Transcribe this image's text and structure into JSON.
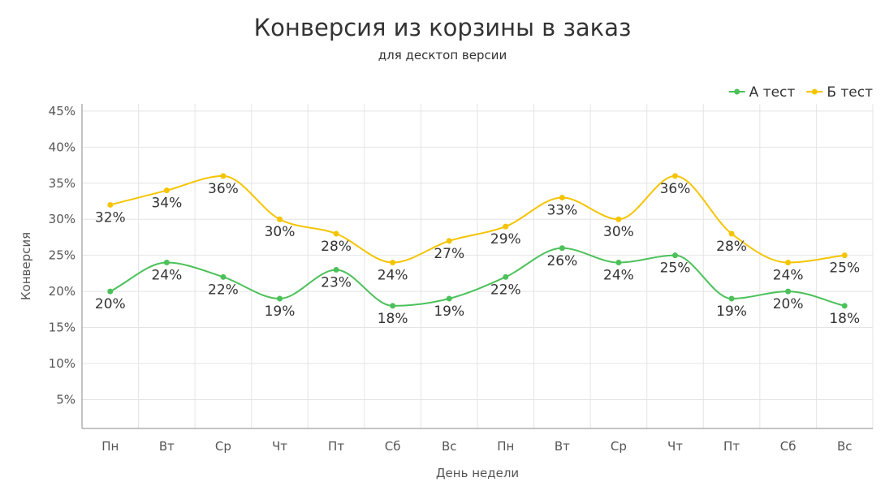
{
  "chart_data": {
    "type": "line",
    "title": "Конверсия из корзины в заказ",
    "subtitle": "для десктоп версии",
    "xlabel": "День недели",
    "ylabel": "Конверсия",
    "categories": [
      "Пн",
      "Вт",
      "Ср",
      "Чт",
      "Пт",
      "Сб",
      "Вс",
      "Пн",
      "Вт",
      "Ср",
      "Чт",
      "Пт",
      "Сб",
      "Вс"
    ],
    "y_ticks": [
      "5%",
      "10%",
      "15%",
      "20%",
      "25%",
      "30%",
      "35%",
      "40%",
      "45%"
    ],
    "y_tick_values": [
      5,
      10,
      15,
      20,
      25,
      30,
      35,
      40,
      45
    ],
    "ylim": [
      1,
      46
    ],
    "grid": true,
    "legend_position": "top-right",
    "series": [
      {
        "name": "А тест",
        "color": "#4cc15a",
        "values": [
          20,
          24,
          22,
          19,
          23,
          18,
          19,
          22,
          26,
          24,
          25,
          19,
          20,
          18
        ],
        "labels": [
          "20%",
          "24%",
          "22%",
          "19%",
          "23%",
          "18%",
          "19%",
          "22%",
          "26%",
          "24%",
          "25%",
          "19%",
          "20%",
          "18%"
        ]
      },
      {
        "name": "Б тест",
        "color": "#f5c400",
        "values": [
          32,
          34,
          36,
          30,
          28,
          24,
          27,
          29,
          33,
          30,
          36,
          28,
          24,
          25
        ],
        "labels": [
          "32%",
          "34%",
          "36%",
          "30%",
          "28%",
          "24%",
          "27%",
          "29%",
          "33%",
          "30%",
          "36%",
          "28%",
          "24%",
          "25%"
        ]
      }
    ]
  }
}
